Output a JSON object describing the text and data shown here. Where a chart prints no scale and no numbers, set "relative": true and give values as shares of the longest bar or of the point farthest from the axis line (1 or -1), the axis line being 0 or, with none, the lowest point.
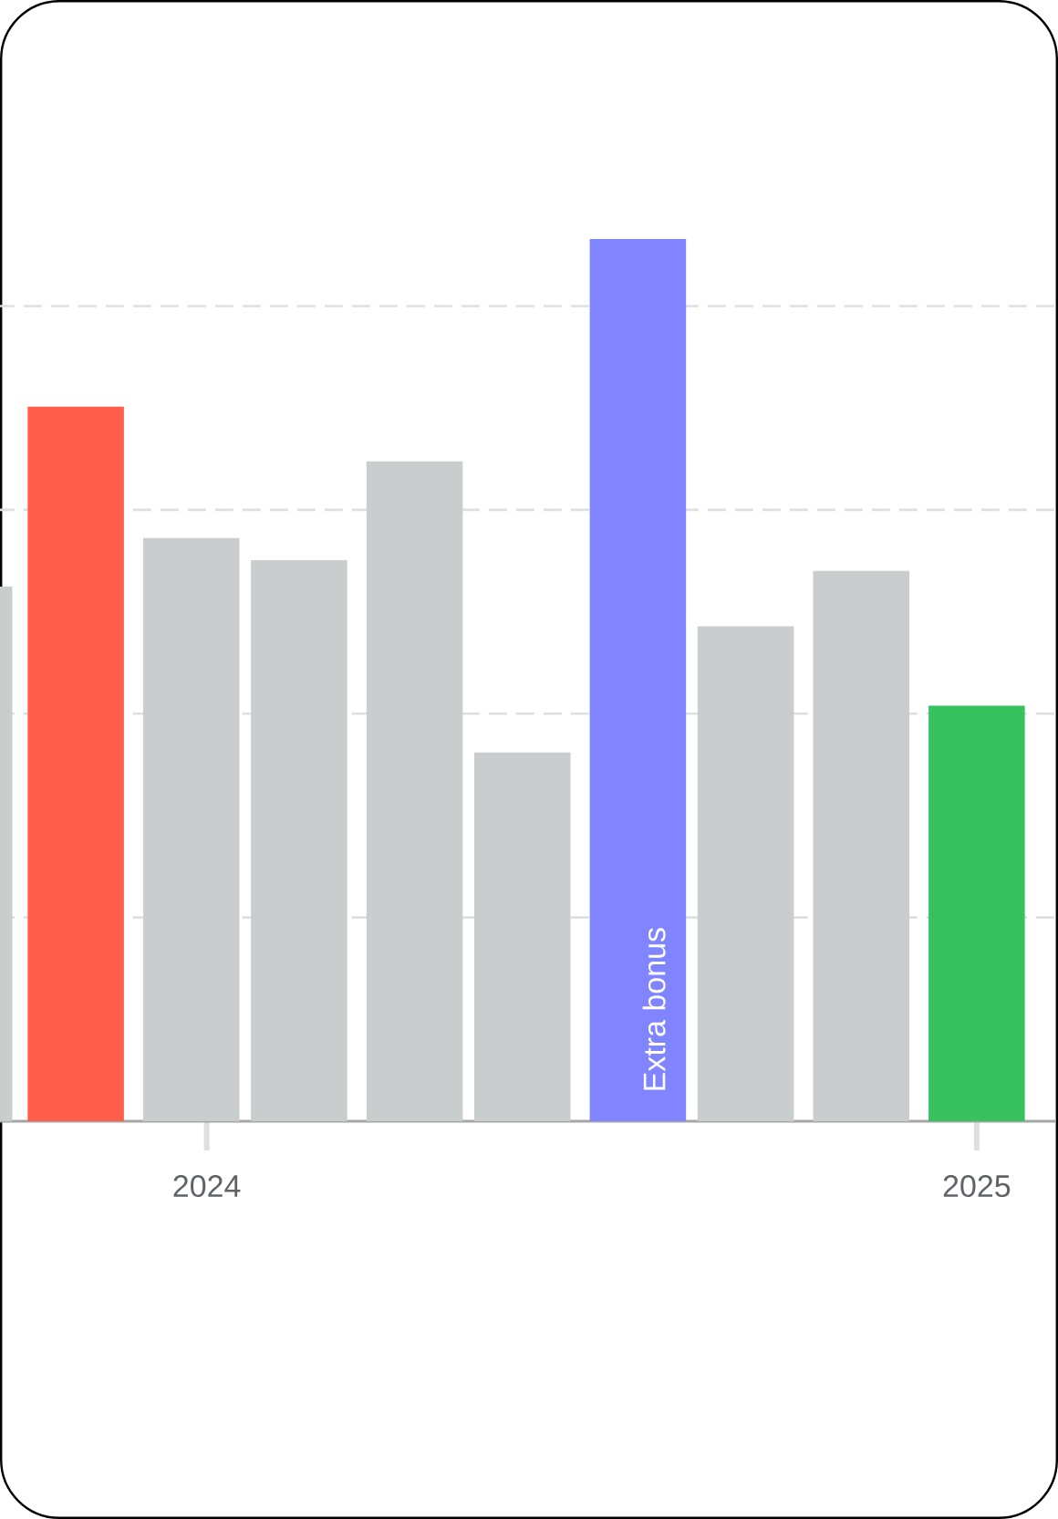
{
  "chart_data": {
    "type": "bar",
    "relative": true,
    "x": [
      2023.685,
      2023.83,
      2023.98,
      2024.12,
      2024.27,
      2024.41,
      2024.56,
      2024.7,
      2024.85,
      2025.0
    ],
    "values": [
      0.606,
      0.81,
      0.661,
      0.636,
      0.748,
      0.418,
      1,
      0.561,
      0.624,
      0.471
    ],
    "colors": [
      "#c9cdce",
      "#ff5e4b",
      "#c9cdce",
      "#c9cdce",
      "#c9cdce",
      "#c9cdce",
      "#8085ff",
      "#c9cdce",
      "#c9cdce",
      "#38c25f"
    ],
    "xlim": [
      2023.62,
      2025.103
    ],
    "xticks": [
      2024,
      2025
    ],
    "tick_labels": "x",
    "ref_lines": [
      {
        "axis": "y",
        "value": 0.231,
        "color": "#dfdfdf",
        "line_style": "dashed"
      },
      {
        "axis": "y",
        "value": 0.462,
        "color": "#dfdfdf",
        "line_style": "dashed"
      },
      {
        "axis": "y",
        "value": 0.693,
        "color": "#dfdfdf",
        "line_style": "dashed"
      },
      {
        "axis": "y",
        "value": 0.924,
        "color": "#dfdfdf",
        "line_style": "dashed"
      }
    ],
    "annotations": [
      "Extra bonus"
    ]
  }
}
